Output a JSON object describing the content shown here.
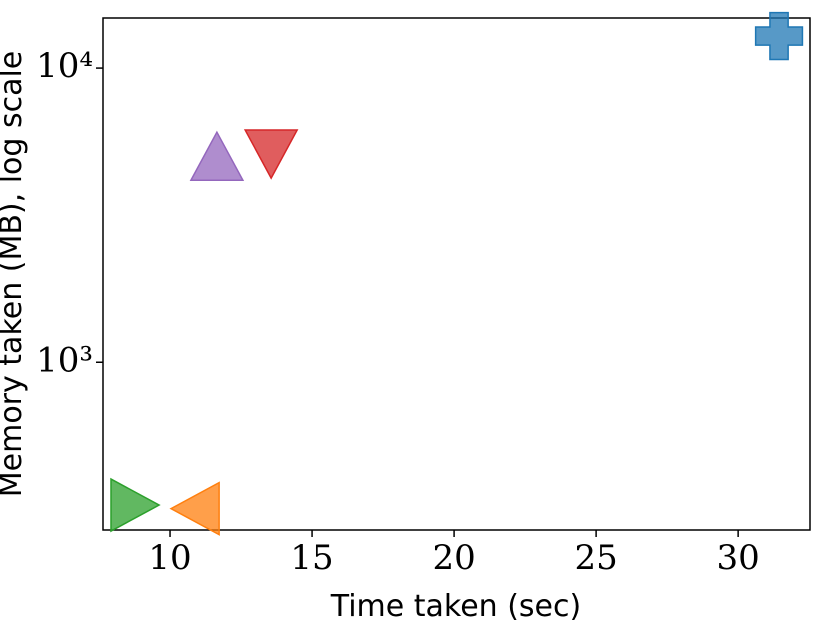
{
  "chart_data": {
    "type": "scatter",
    "xlabel": "Time taken (sec)",
    "ylabel": "Memory taken (MB), log scale",
    "xlim": [
      7.64,
      32.53
    ],
    "xticks": [
      10,
      15,
      20,
      25,
      30
    ],
    "ylim": [
      269,
      14800
    ],
    "yscale": "log",
    "yticks": [
      {
        "value": 1000,
        "label": "10³"
      },
      {
        "value": 10000,
        "label": "10⁴"
      }
    ],
    "alpha": 0.75,
    "series": [
      {
        "color": "#1f77b4",
        "marker": "plus",
        "x": [
          31.44
        ],
        "values": [
          12850
        ]
      },
      {
        "color": "#9467bd",
        "marker": "triangle-up",
        "x": [
          11.65
        ],
        "values": [
          4940
        ]
      },
      {
        "color": "#d62728",
        "marker": "triangle-down",
        "x": [
          13.56
        ],
        "values": [
          5180
        ]
      },
      {
        "color": "#2ca02c",
        "marker": "triangle-right",
        "x": [
          8.7
        ],
        "values": [
          327
        ]
      },
      {
        "color": "#ff7f0e",
        "marker": "triangle-left",
        "x": [
          10.95
        ],
        "values": [
          318
        ]
      }
    ]
  }
}
